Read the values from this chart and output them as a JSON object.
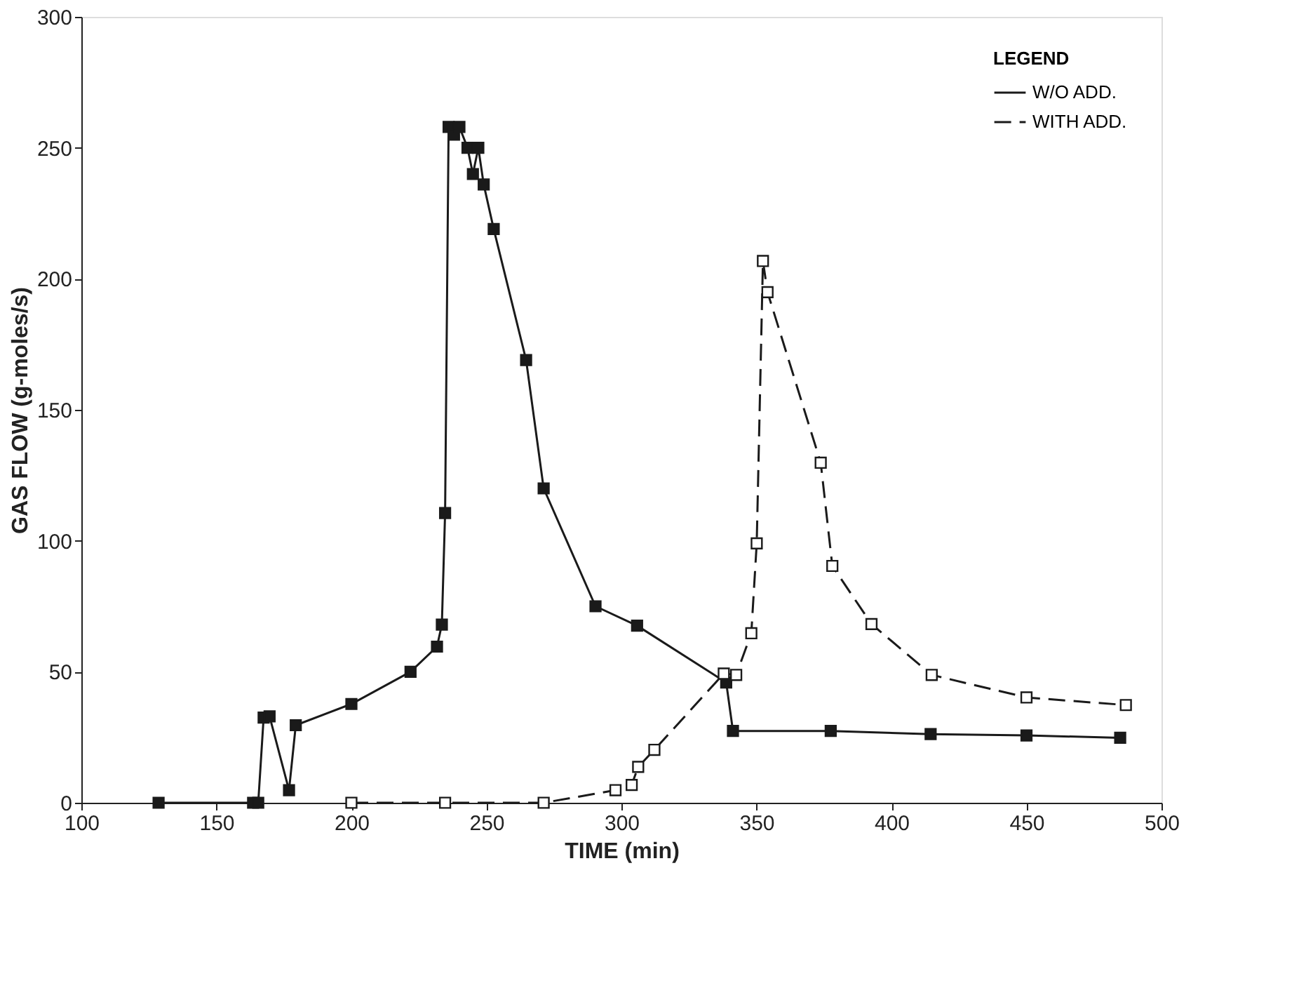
{
  "chart_data": {
    "type": "line",
    "xlabel": "TIME (min)",
    "ylabel": "GAS FLOW (g-moles/s)",
    "legend_title": "LEGEND",
    "legend": "top right",
    "grid": false,
    "xlim": [
      100,
      500
    ],
    "xticks": [
      100,
      150,
      200,
      250,
      300,
      350,
      400,
      450,
      500
    ],
    "ylim": [
      0,
      300
    ],
    "yticks": [
      0,
      50,
      100,
      150,
      200,
      250,
      300
    ],
    "series": [
      {
        "name": "W/O ADD.",
        "color": "#1a1a1a",
        "marker": "square",
        "line_style": "solid",
        "x": [
          128.6,
          163.6,
          165.5,
          167.5,
          169.7,
          176.9,
          179.4,
          200,
          221.9,
          231.7,
          233.5,
          234.7,
          236,
          238,
          240,
          243,
          245,
          247,
          249,
          252.7,
          264.7,
          271.2,
          290.4,
          305.8,
          338.8,
          341.3,
          377.5,
          414.5,
          450,
          484.7
        ],
        "values": [
          0,
          0,
          0,
          32.5,
          33,
          4.8,
          29.6,
          37.7,
          50,
          59.6,
          68,
          110.6,
          258,
          255,
          258,
          250,
          240,
          250,
          236,
          219,
          169,
          120,
          75,
          67.6,
          45.9,
          27.4,
          27.4,
          26.2,
          25.7,
          24.8
        ]
      },
      {
        "name": "WITH ADD.",
        "color": "#1a1a1a",
        "marker": "square",
        "line_style": "dashed",
        "x": [
          200,
          234.7,
          271.2,
          297.8,
          303.8,
          306.2,
          312.2,
          337.9,
          342.5,
          348.1,
          350.1,
          352.4,
          354.1,
          373.8,
          378.1,
          392.6,
          414.9,
          450,
          486.8
        ],
        "values": [
          0,
          0,
          0,
          4.8,
          6.8,
          13.7,
          20.2,
          49.3,
          48.8,
          64.7,
          99,
          206.8,
          194.9,
          129.8,
          90.4,
          68.2,
          48.8,
          40.2,
          37.3
        ]
      }
    ]
  }
}
